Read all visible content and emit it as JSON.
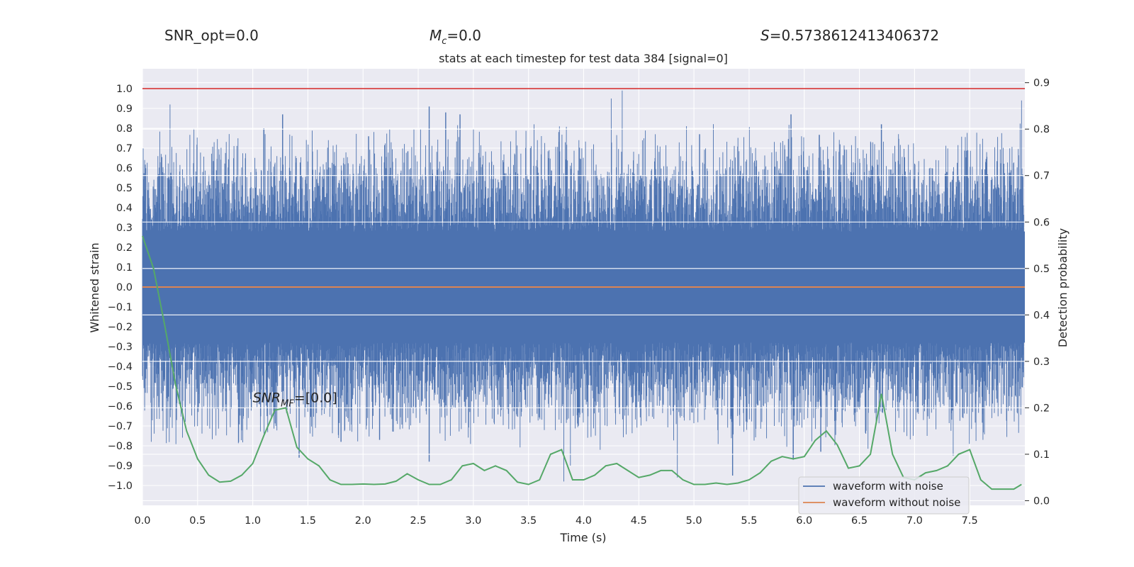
{
  "header": {
    "snr_opt_label": "SNR_opt=0.0",
    "mc_symbol": "M",
    "mc_subscript": "c",
    "mc_value": "=0.0",
    "s_symbol": "S",
    "s_value": "=0.5738612413406372"
  },
  "chart_data": {
    "type": "line",
    "title": "stats at each timestep for test data 384 [signal=0]",
    "xlabel": "Time (s)",
    "ylabel": "Whitened strain",
    "y2label": "Detection probability",
    "xlim": [
      0.0,
      8.0
    ],
    "ylim": [
      -1.1,
      1.1
    ],
    "y2lim": [
      -0.01,
      0.93
    ],
    "x_ticks": [
      "0.0",
      "0.5",
      "1.0",
      "1.5",
      "2.0",
      "2.5",
      "3.0",
      "3.5",
      "4.0",
      "4.5",
      "5.0",
      "5.5",
      "6.0",
      "6.5",
      "7.0",
      "7.5"
    ],
    "y_ticks": [
      "1.0",
      "0.9",
      "0.8",
      "0.7",
      "0.6",
      "0.5",
      "0.4",
      "0.3",
      "0.2",
      "0.1",
      "0.0",
      "-0.1",
      "-0.2",
      "-0.3",
      "-0.4",
      "-0.5",
      "-0.6",
      "-0.7",
      "-0.8",
      "-0.9",
      "-1.0"
    ],
    "y2_ticks": [
      "0.9",
      "0.8",
      "0.7",
      "0.6",
      "0.5",
      "0.4",
      "0.3",
      "0.2",
      "0.1",
      "0.0"
    ],
    "threshold_line": {
      "y": 1.0,
      "color": "#d62728"
    },
    "annotation": {
      "prefix": "SNR",
      "subscript": "MF",
      "value": "=[0.0]",
      "x": 1.0,
      "y": -0.58
    },
    "grid": true,
    "legend_position": "lower-right",
    "series": [
      {
        "name": "waveform with noise",
        "color": "#4c72b0",
        "axis": "left",
        "description_points": {
          "spikes_up": [
            [
              0.25,
              0.92
            ],
            [
              1.27,
              0.87
            ],
            [
              1.1,
              0.8
            ],
            [
              2.6,
              0.91
            ],
            [
              2.75,
              0.88
            ],
            [
              2.88,
              0.87
            ],
            [
              3.55,
              0.82
            ],
            [
              4.25,
              0.95
            ],
            [
              4.35,
              0.99
            ],
            [
              4.65,
              0.77
            ],
            [
              5.05,
              0.77
            ],
            [
              5.88,
              0.87
            ],
            [
              6.7,
              0.82
            ],
            [
              7.97,
              0.94
            ],
            [
              0.14,
              0.66
            ],
            [
              0.02,
              0.64
            ],
            [
              0.65,
              0.73
            ],
            [
              2.05,
              0.76
            ],
            [
              3.78,
              0.81
            ]
          ],
          "spikes_down": [
            [
              3.82,
              -0.98
            ],
            [
              3.88,
              -0.9
            ],
            [
              5.35,
              -0.95
            ],
            [
              2.6,
              -0.88
            ],
            [
              1.42,
              -0.86
            ],
            [
              6.15,
              -0.83
            ],
            [
              7.35,
              -0.85
            ],
            [
              0.27,
              -0.71
            ],
            [
              4.15,
              -0.82
            ],
            [
              4.85,
              -0.96
            ],
            [
              1.8,
              -0.78
            ],
            [
              2.15,
              -0.77
            ],
            [
              7.62,
              -0.77
            ],
            [
              5.9,
              -0.87
            ]
          ]
        }
      },
      {
        "name": "waveform without noise",
        "color": "#dd8452",
        "axis": "left",
        "x": [
          0.0,
          8.0
        ],
        "y": [
          0.0,
          0.0
        ]
      },
      {
        "color": "#55a868",
        "axis": "right",
        "x": [
          0.0,
          0.1,
          0.2,
          0.3,
          0.4,
          0.5,
          0.6,
          0.7,
          0.8,
          0.9,
          1.0,
          1.1,
          1.2,
          1.3,
          1.4,
          1.5,
          1.6,
          1.7,
          1.8,
          1.9,
          2.0,
          2.1,
          2.2,
          2.3,
          2.4,
          2.5,
          2.6,
          2.7,
          2.8,
          2.9,
          3.0,
          3.1,
          3.2,
          3.3,
          3.4,
          3.5,
          3.6,
          3.7,
          3.8,
          3.9,
          4.0,
          4.1,
          4.2,
          4.3,
          4.4,
          4.5,
          4.6,
          4.7,
          4.8,
          4.9,
          5.0,
          5.1,
          5.2,
          5.3,
          5.4,
          5.5,
          5.6,
          5.7,
          5.8,
          5.9,
          6.0,
          6.1,
          6.2,
          6.3,
          6.4,
          6.5,
          6.6,
          6.7,
          6.8,
          6.9,
          7.0,
          7.1,
          7.2,
          7.3,
          7.4,
          7.5,
          7.6,
          7.7,
          7.8,
          7.9,
          7.97
        ],
        "y": [
          0.57,
          0.5,
          0.38,
          0.25,
          0.15,
          0.09,
          0.055,
          0.04,
          0.042,
          0.055,
          0.08,
          0.14,
          0.195,
          0.2,
          0.115,
          0.09,
          0.075,
          0.045,
          0.035,
          0.035,
          0.036,
          0.035,
          0.036,
          0.042,
          0.058,
          0.045,
          0.035,
          0.035,
          0.045,
          0.075,
          0.08,
          0.065,
          0.075,
          0.065,
          0.04,
          0.035,
          0.045,
          0.1,
          0.11,
          0.045,
          0.045,
          0.055,
          0.075,
          0.08,
          0.065,
          0.05,
          0.055,
          0.065,
          0.065,
          0.045,
          0.035,
          0.035,
          0.038,
          0.035,
          0.038,
          0.045,
          0.06,
          0.085,
          0.095,
          0.09,
          0.095,
          0.13,
          0.15,
          0.12,
          0.07,
          0.075,
          0.1,
          0.23,
          0.1,
          0.05,
          0.045,
          0.06,
          0.065,
          0.075,
          0.1,
          0.11,
          0.045,
          0.025,
          0.025,
          0.025,
          0.035
        ]
      }
    ]
  }
}
